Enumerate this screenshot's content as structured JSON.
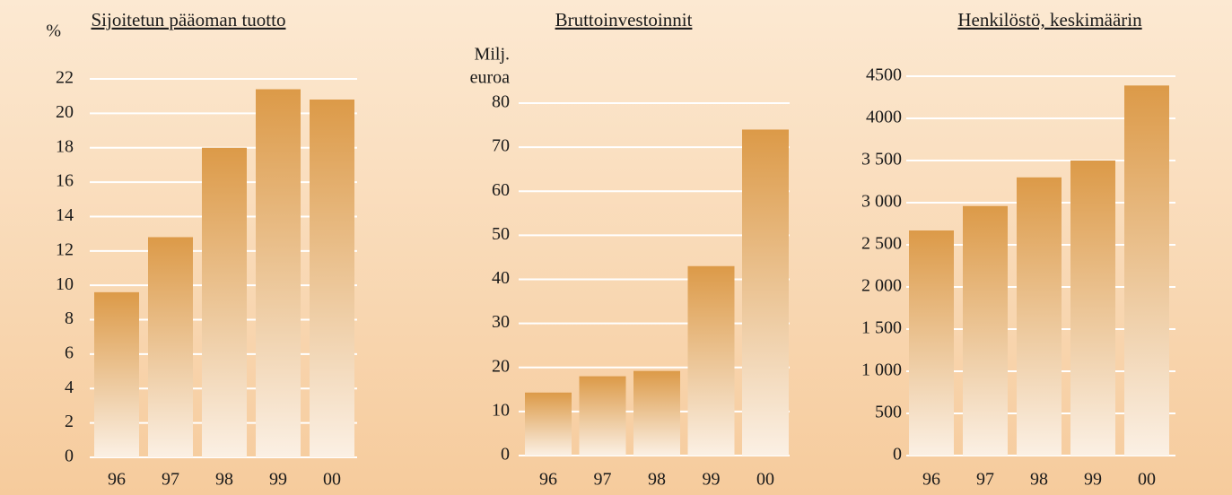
{
  "chart_data": [
    {
      "type": "bar",
      "title": "Sijoitetun pääoman tuotto",
      "y_label": [
        "%"
      ],
      "categories": [
        "96",
        "97",
        "98",
        "99",
        "00"
      ],
      "values": [
        9.6,
        12.8,
        18.0,
        21.4,
        20.8
      ],
      "color": "#dc9a48",
      "ylim": [
        0,
        22
      ],
      "yticks": [
        0,
        2,
        4,
        6,
        8,
        10,
        12,
        14,
        16,
        18,
        20,
        22
      ],
      "grid": true
    },
    {
      "type": "bar",
      "title": "Bruttoinvestoinnit",
      "y_label": [
        "Milj.",
        "euroa"
      ],
      "categories": [
        "96",
        "97",
        "98",
        "99",
        "00"
      ],
      "values": [
        14.3,
        18.0,
        19.2,
        43.0,
        74.0
      ],
      "color": "#dc9a48",
      "ylim": [
        0,
        80
      ],
      "yticks": [
        0,
        10,
        20,
        30,
        40,
        50,
        60,
        70,
        80
      ],
      "grid": true
    },
    {
      "type": "bar",
      "title": "Henkilöstö, keskimäärin",
      "y_label": [],
      "categories": [
        "96",
        "97",
        "98",
        "99",
        "00"
      ],
      "values": [
        2670,
        2960,
        3300,
        3500,
        4390
      ],
      "color": "#dc9a48",
      "ylim": [
        0,
        4500
      ],
      "yticks": [
        0,
        500,
        {
          "value": 1000,
          "label": "1 000"
        },
        {
          "value": 1500,
          "label": "1 500"
        },
        {
          "value": 2000,
          "label": "2 000"
        },
        {
          "value": 2500,
          "label": "2 500"
        },
        {
          "value": 3000,
          "label": "3 000"
        },
        {
          "value": 3500,
          "label": "3 500"
        },
        4000,
        4500
      ],
      "grid": true
    }
  ]
}
